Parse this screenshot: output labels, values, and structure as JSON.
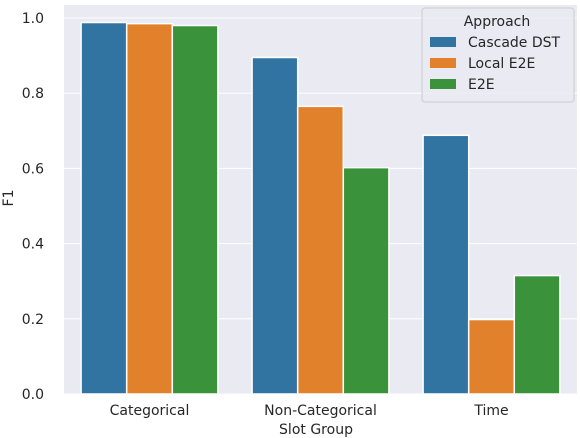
{
  "chart_data": {
    "type": "bar",
    "categories": [
      "Categorical",
      "Non-Categorical",
      "Time"
    ],
    "series": [
      {
        "name": "Cascade DST",
        "color": "#3274a1",
        "values": [
          0.988,
          0.895,
          0.688
        ]
      },
      {
        "name": "Local E2E",
        "color": "#e1812c",
        "values": [
          0.985,
          0.765,
          0.198
        ]
      },
      {
        "name": "E2E",
        "color": "#3a923a",
        "values": [
          0.98,
          0.602,
          0.315
        ]
      }
    ],
    "title": "",
    "xlabel": "Slot Group",
    "ylabel": "F1",
    "ylim": [
      0,
      1.0
    ],
    "yticks": [
      0.0,
      0.2,
      0.4,
      0.6,
      0.8,
      1.0
    ],
    "ytick_labels": [
      "0.0",
      "0.2",
      "0.4",
      "0.6",
      "0.8",
      "1.0"
    ],
    "grid": true,
    "legend": {
      "title": "Approach",
      "placement": "top-right"
    },
    "background_color": "#eaeaf2"
  }
}
